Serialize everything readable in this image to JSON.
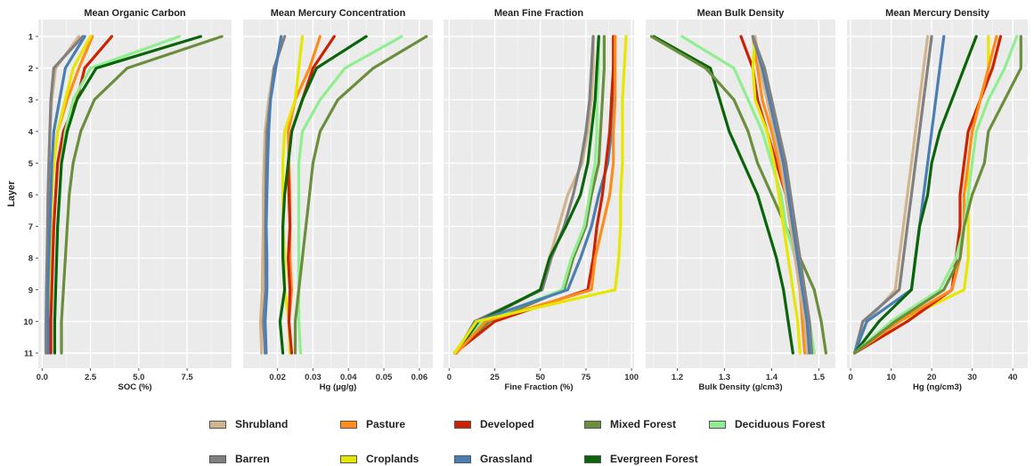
{
  "legend_labels": {
    "shrubland": "Shrubland",
    "pasture": "Pasture",
    "developed": "Developed",
    "mixed": "Mixed Forest",
    "deciduous": "Deciduous Forest",
    "barren": "Barren",
    "croplands": "Croplands",
    "grassland": "Grassland",
    "evergreen": "Evergreen Forest"
  },
  "chart_data": [
    {
      "type": "line",
      "title": "Mean Organic Carbon",
      "xlabel": "SOC (%)",
      "ylabel": "Layer",
      "xlim": [
        -0.2,
        9.8
      ],
      "xticks": [
        0.0,
        2.5,
        5.0,
        7.5
      ],
      "xtick_labels": [
        "0.0",
        "2.5",
        "5.0",
        "7.5"
      ],
      "y": [
        1,
        2,
        3,
        4,
        5,
        6,
        7,
        8,
        9,
        10,
        11
      ],
      "series": [
        {
          "name": "Shrubland",
          "color": "#d2b48c",
          "values": [
            1.9,
            0.7,
            0.5,
            0.4,
            0.35,
            0.3,
            0.3,
            0.28,
            0.25,
            0.2,
            0.2
          ]
        },
        {
          "name": "Barren",
          "color": "#808080",
          "values": [
            2.1,
            0.6,
            0.45,
            0.4,
            0.35,
            0.3,
            0.28,
            0.25,
            0.22,
            0.2,
            0.2
          ]
        },
        {
          "name": "Pasture",
          "color": "#ff8c1a",
          "values": [
            2.6,
            1.9,
            1.3,
            0.8,
            0.6,
            0.5,
            0.45,
            0.4,
            0.35,
            0.3,
            0.3
          ]
        },
        {
          "name": "Croplands",
          "color": "#e6e600",
          "values": [
            2.5,
            1.6,
            1.2,
            0.8,
            0.6,
            0.5,
            0.45,
            0.4,
            0.38,
            0.35,
            0.35
          ]
        },
        {
          "name": "Developed",
          "color": "#cc2200",
          "values": [
            3.6,
            2.2,
            1.8,
            1.1,
            0.8,
            0.7,
            0.6,
            0.55,
            0.5,
            0.45,
            0.45
          ]
        },
        {
          "name": "Grassland",
          "color": "#4a7eb5",
          "values": [
            2.2,
            1.2,
            0.9,
            0.6,
            0.5,
            0.45,
            0.4,
            0.35,
            0.3,
            0.3,
            0.3
          ]
        },
        {
          "name": "Mixed Forest",
          "color": "#6b8e3d",
          "values": [
            9.3,
            4.4,
            2.7,
            2.0,
            1.6,
            1.4,
            1.3,
            1.2,
            1.1,
            1.0,
            1.0
          ]
        },
        {
          "name": "Deciduous Forest",
          "color": "#90ee90",
          "values": [
            7.1,
            2.5,
            1.6,
            1.2,
            1.0,
            0.9,
            0.8,
            0.75,
            0.7,
            0.65,
            0.65
          ]
        },
        {
          "name": "Evergreen Forest",
          "color": "#0a640a",
          "values": [
            8.2,
            2.8,
            1.8,
            1.3,
            1.0,
            0.9,
            0.8,
            0.75,
            0.7,
            0.65,
            0.65
          ]
        }
      ]
    },
    {
      "type": "line",
      "title": "Mean Mercury Concentration",
      "xlabel": "Hg (μg/g)",
      "ylabel": "Layer",
      "xlim": [
        0.0103,
        0.0638
      ],
      "xticks": [
        0.02,
        0.03,
        0.04,
        0.05,
        0.06
      ],
      "xtick_labels": [
        "0.02",
        "0.03",
        "0.04",
        "0.05",
        "0.06"
      ],
      "y": [
        1,
        2,
        3,
        4,
        5,
        6,
        7,
        8,
        9,
        10,
        11
      ],
      "series": [
        {
          "name": "Shrubland",
          "color": "#d2b48c",
          "values": [
            0.022,
            0.019,
            0.0175,
            0.0165,
            0.0162,
            0.016,
            0.016,
            0.0158,
            0.0157,
            0.0152,
            0.0155
          ]
        },
        {
          "name": "Barren",
          "color": "#808080",
          "values": [
            0.022,
            0.019,
            0.018,
            0.017,
            0.0168,
            0.0167,
            0.0166,
            0.0166,
            0.0166,
            0.016,
            0.0165
          ]
        },
        {
          "name": "Grassland",
          "color": "#4a7eb5",
          "values": [
            0.021,
            0.0195,
            0.018,
            0.0175,
            0.0172,
            0.017,
            0.0168,
            0.017,
            0.017,
            0.0165,
            0.0168
          ]
        },
        {
          "name": "Pasture",
          "color": "#ff8c1a",
          "values": [
            0.032,
            0.029,
            0.025,
            0.023,
            0.0232,
            0.0235,
            0.0235,
            0.0235,
            0.024,
            0.0232,
            0.0235
          ]
        },
        {
          "name": "Croplands",
          "color": "#e6e600",
          "values": [
            0.027,
            0.026,
            0.025,
            0.022,
            0.0215,
            0.0215,
            0.0215,
            0.022,
            0.022,
            0.0232,
            0.0235
          ]
        },
        {
          "name": "Developed",
          "color": "#cc2200",
          "values": [
            0.036,
            0.03,
            0.027,
            0.024,
            0.023,
            0.0232,
            0.0235,
            0.023,
            0.0235,
            0.0232,
            0.024
          ]
        },
        {
          "name": "Evergreen Forest",
          "color": "#0a640a",
          "values": [
            0.045,
            0.031,
            0.027,
            0.024,
            0.023,
            0.022,
            0.0215,
            0.0215,
            0.022,
            0.0207,
            0.0215
          ]
        },
        {
          "name": "Deciduous Forest",
          "color": "#90ee90",
          "values": [
            0.055,
            0.039,
            0.032,
            0.027,
            0.026,
            0.026,
            0.026,
            0.026,
            0.026,
            0.026,
            0.0265
          ]
        },
        {
          "name": "Mixed Forest",
          "color": "#6b8e3d",
          "values": [
            0.062,
            0.047,
            0.037,
            0.032,
            0.03,
            0.029,
            0.028,
            0.027,
            0.026,
            0.025,
            0.025
          ]
        }
      ]
    },
    {
      "type": "line",
      "title": "Mean Fine Fraction",
      "xlabel": "Fine Fraction (%)",
      "ylabel": "Layer",
      "xlim": [
        -3.1,
        101.4
      ],
      "xticks": [
        0,
        25,
        50,
        75,
        100
      ],
      "xtick_labels": [
        "0",
        "25",
        "50",
        "75",
        "100"
      ],
      "y": [
        1,
        2,
        3,
        4,
        5,
        6,
        7,
        8,
        9,
        10,
        11
      ],
      "series": [
        {
          "name": "Shrubland",
          "color": "#d2b48c",
          "values": [
            79,
            79,
            78,
            76,
            73,
            65,
            60,
            55,
            50,
            18,
            4
          ]
        },
        {
          "name": "Barren",
          "color": "#808080",
          "values": [
            79,
            78,
            77,
            75,
            72,
            68,
            63,
            56,
            51,
            14,
            4
          ]
        },
        {
          "name": "Mixed Forest",
          "color": "#6b8e3d",
          "values": [
            85,
            85,
            84,
            83,
            82,
            78,
            75,
            68,
            63,
            22,
            3
          ]
        },
        {
          "name": "Deciduous Forest",
          "color": "#90ee90",
          "values": [
            82,
            82,
            81,
            81,
            80,
            77,
            74,
            67,
            62,
            18,
            3
          ]
        },
        {
          "name": "Evergreen Forest",
          "color": "#0a640a",
          "values": [
            82,
            81,
            80,
            78,
            76,
            72,
            64,
            55,
            50,
            16,
            4
          ]
        },
        {
          "name": "Grassland",
          "color": "#4a7eb5",
          "values": [
            91,
            90,
            90,
            89,
            87,
            82,
            78,
            72,
            65,
            15,
            3
          ]
        },
        {
          "name": "Developed",
          "color": "#cc2200",
          "values": [
            90,
            90,
            89,
            88,
            86,
            84,
            81,
            79,
            76,
            25,
            3
          ]
        },
        {
          "name": "Pasture",
          "color": "#ff8c1a",
          "values": [
            91,
            91,
            91,
            90,
            90,
            88,
            84,
            80,
            78,
            20,
            4
          ]
        },
        {
          "name": "Croplands",
          "color": "#e6e600",
          "values": [
            97,
            96,
            95,
            95,
            95,
            94,
            94,
            93,
            91,
            15,
            3
          ]
        }
      ]
    },
    {
      "type": "line",
      "title": "Mean Bulk Density",
      "xlabel": "Bulk Density (g/cm3)",
      "ylabel": "Layer",
      "xlim": [
        1.133,
        1.535
      ],
      "xticks": [
        1.2,
        1.3,
        1.4,
        1.5
      ],
      "xtick_labels": [
        "1.2",
        "1.3",
        "1.4",
        "1.5"
      ],
      "y": [
        1,
        2,
        3,
        4,
        5,
        6,
        7,
        8,
        9,
        10,
        11
      ],
      "series": [
        {
          "name": "Evergreen Forest",
          "color": "#0a640a",
          "values": [
            1.15,
            1.27,
            1.29,
            1.31,
            1.34,
            1.37,
            1.39,
            1.41,
            1.425,
            1.435,
            1.445
          ]
        },
        {
          "name": "Mixed Forest",
          "color": "#6b8e3d",
          "values": [
            1.145,
            1.26,
            1.32,
            1.35,
            1.37,
            1.4,
            1.43,
            1.46,
            1.49,
            1.505,
            1.515
          ]
        },
        {
          "name": "Deciduous Forest",
          "color": "#90ee90",
          "values": [
            1.21,
            1.32,
            1.35,
            1.38,
            1.4,
            1.42,
            1.43,
            1.45,
            1.465,
            1.48,
            1.49
          ]
        },
        {
          "name": "Developed",
          "color": "#cc2200",
          "values": [
            1.335,
            1.36,
            1.37,
            1.39,
            1.41,
            1.43,
            1.44,
            1.45,
            1.46,
            1.47,
            1.475
          ]
        },
        {
          "name": "Pasture",
          "color": "#ff8c1a",
          "values": [
            1.36,
            1.37,
            1.38,
            1.4,
            1.415,
            1.43,
            1.44,
            1.45,
            1.46,
            1.465,
            1.47
          ]
        },
        {
          "name": "Croplands",
          "color": "#e6e600",
          "values": [
            1.365,
            1.36,
            1.365,
            1.39,
            1.405,
            1.415,
            1.425,
            1.435,
            1.445,
            1.455,
            1.46
          ]
        },
        {
          "name": "Shrubland",
          "color": "#d2b48c",
          "values": [
            1.365,
            1.375,
            1.39,
            1.405,
            1.42,
            1.43,
            1.44,
            1.45,
            1.46,
            1.47,
            1.475
          ]
        },
        {
          "name": "Grassland",
          "color": "#4a7eb5",
          "values": [
            1.36,
            1.38,
            1.395,
            1.41,
            1.425,
            1.435,
            1.445,
            1.455,
            1.465,
            1.475,
            1.48
          ]
        },
        {
          "name": "Barren",
          "color": "#808080",
          "values": [
            1.36,
            1.385,
            1.4,
            1.415,
            1.43,
            1.44,
            1.45,
            1.46,
            1.47,
            1.48,
            1.485
          ]
        }
      ]
    },
    {
      "type": "line",
      "title": "Mean Mercury Density",
      "xlabel": "Hg (ng/cm3)",
      "ylabel": "Layer",
      "xlim": [
        -0.9,
        43.7
      ],
      "xticks": [
        0,
        10,
        20,
        30,
        40
      ],
      "xtick_labels": [
        "0",
        "10",
        "20",
        "30",
        "40"
      ],
      "y": [
        1,
        2,
        3,
        4,
        5,
        6,
        7,
        8,
        9,
        10,
        11
      ],
      "series": [
        {
          "name": "Shrubland",
          "color": "#d2b48c",
          "values": [
            19,
            18,
            17,
            16,
            15,
            14,
            13,
            12,
            11,
            4,
            1
          ]
        },
        {
          "name": "Barren",
          "color": "#808080",
          "values": [
            20,
            19,
            18,
            17,
            16,
            15,
            14,
            13,
            12,
            3,
            1
          ]
        },
        {
          "name": "Grassland",
          "color": "#4a7eb5",
          "values": [
            23,
            22,
            21,
            20,
            19,
            18,
            17,
            16,
            15,
            4,
            1
          ]
        },
        {
          "name": "Evergreen Forest",
          "color": "#0a640a",
          "values": [
            31,
            28,
            25,
            22,
            20,
            19,
            17,
            16,
            15,
            7,
            1
          ]
        },
        {
          "name": "Croplands",
          "color": "#e6e600",
          "values": [
            34,
            34,
            32,
            30,
            29,
            29,
            29,
            29,
            28,
            12,
            1
          ]
        },
        {
          "name": "Developed",
          "color": "#cc2200",
          "values": [
            37,
            35,
            32,
            29,
            28,
            27,
            27,
            26,
            25,
            14,
            1
          ]
        },
        {
          "name": "Pasture",
          "color": "#ff8c1a",
          "values": [
            36,
            34,
            32,
            30,
            29,
            28,
            28,
            27,
            25,
            12,
            1
          ]
        },
        {
          "name": "Deciduous Forest",
          "color": "#90ee90",
          "values": [
            41,
            38,
            34,
            31,
            30,
            29,
            28,
            26,
            22,
            10,
            1
          ]
        },
        {
          "name": "Mixed Forest",
          "color": "#6b8e3d",
          "values": [
            42,
            42,
            38,
            34,
            33,
            30,
            28,
            27,
            23,
            11,
            1
          ]
        }
      ]
    }
  ]
}
